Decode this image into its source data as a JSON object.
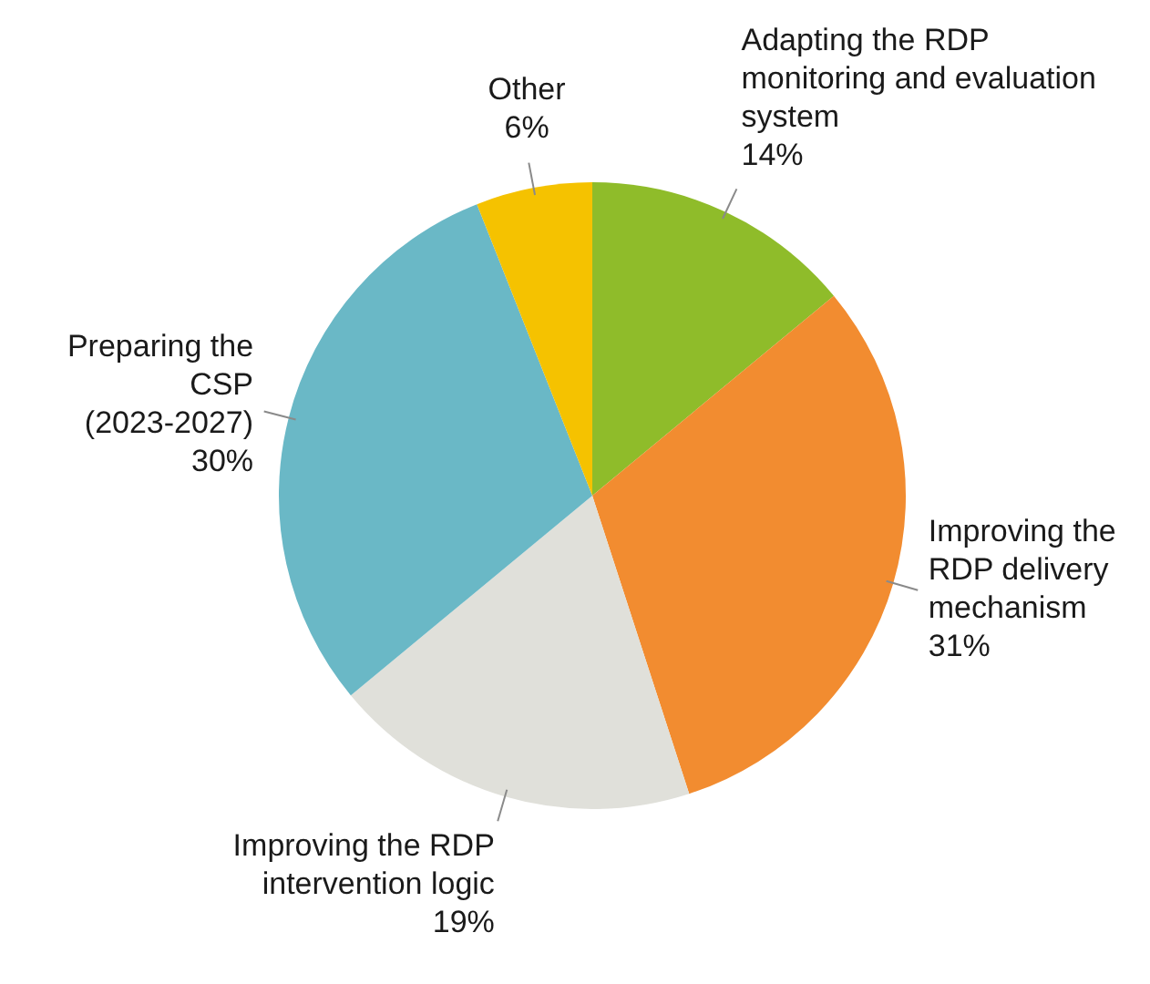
{
  "chart_data": {
    "type": "pie",
    "categories": [
      "Adapting the RDP monitoring and evaluation system",
      "Improving the RDP delivery mechanism",
      "Improving the RDP intervention logic",
      "Preparing the CSP (2023-2027)",
      "Other"
    ],
    "values": [
      14,
      31,
      19,
      30,
      6
    ],
    "value_labels": [
      "14%",
      "31%",
      "19%",
      "30%",
      "6%"
    ],
    "colors": [
      "#8fbc2a",
      "#f28c30",
      "#e0e0da",
      "#6ab8c6",
      "#f5c200"
    ],
    "legend": false
  }
}
